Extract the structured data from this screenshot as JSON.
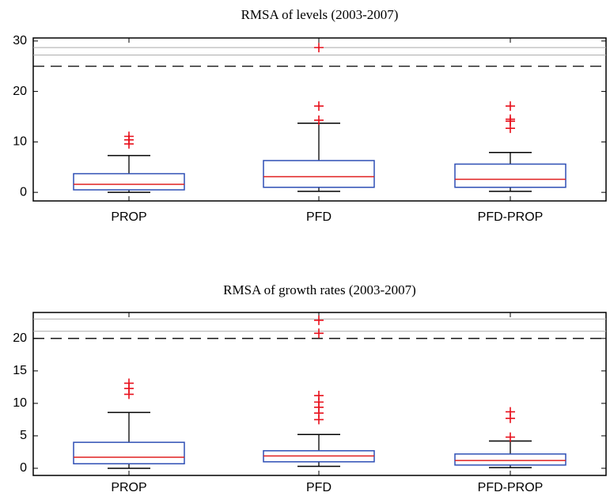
{
  "chart_data": [
    {
      "type": "box",
      "title": "RMSA of levels (2003-2007)",
      "categories": [
        "PROP",
        "PFD",
        "PFD-PROP"
      ],
      "boxes": [
        {
          "min": 0,
          "q1": 0.5,
          "median": 1.6,
          "q3": 3.7,
          "max": 7.3,
          "outliers": [
            9.6,
            10.4,
            11.1
          ]
        },
        {
          "min": 0.2,
          "q1": 1.0,
          "median": 3.1,
          "q3": 6.3,
          "max": 13.7,
          "outliers": [
            14.3,
            17.1,
            28.7
          ]
        },
        {
          "min": 0.2,
          "q1": 1.0,
          "median": 2.6,
          "q3": 5.6,
          "max": 7.9,
          "outliers": [
            12.7,
            14.1,
            14.5,
            17.1
          ]
        }
      ],
      "ylim": [
        -1.7,
        30.6
      ],
      "yticks": [
        0,
        10,
        20,
        30
      ],
      "limit_line": 25,
      "break_lines": [
        27.2,
        28.7
      ],
      "box_color": "#2e4fb5",
      "median_color": "#e02020",
      "whisker_color": "#000000",
      "outlier_color": "#e8101c"
    },
    {
      "type": "box",
      "title": "RMSA of growth rates (2003-2007)",
      "categories": [
        "PROP",
        "PFD",
        "PFD-PROP"
      ],
      "boxes": [
        {
          "min": 0,
          "q1": 0.7,
          "median": 1.7,
          "q3": 4.0,
          "max": 8.6,
          "outliers": [
            11.4,
            12.3,
            13.1
          ]
        },
        {
          "min": 0.3,
          "q1": 1.0,
          "median": 1.9,
          "q3": 2.7,
          "max": 5.2,
          "outliers": [
            7.5,
            8.5,
            9.4,
            10.2,
            11.2,
            20.8,
            22.8
          ]
        },
        {
          "min": 0.1,
          "q1": 0.5,
          "median": 1.2,
          "q3": 2.2,
          "max": 4.2,
          "outliers": [
            4.8,
            7.7,
            8.7
          ]
        }
      ],
      "ylim": [
        -1.1,
        24.0
      ],
      "yticks": [
        0,
        5,
        10,
        15,
        20
      ],
      "limit_line": 20,
      "break_lines": [
        21.1,
        23.0
      ],
      "box_color": "#2e4fb5",
      "median_color": "#e02020",
      "whisker_color": "#000000",
      "outlier_color": "#e8101c"
    }
  ]
}
